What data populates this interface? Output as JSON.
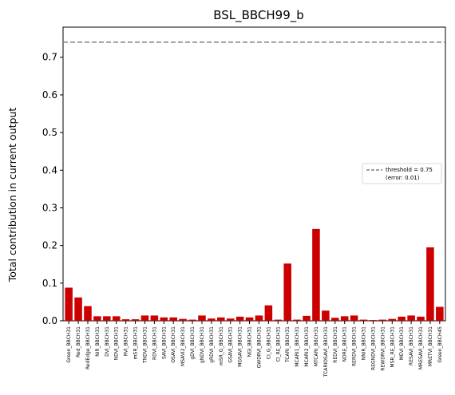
{
  "chart_data": {
    "type": "bar",
    "title": "BSL_BBCH99_b",
    "xlabel": "",
    "ylabel": "Total contribution in current output",
    "ylim": [
      0,
      0.78
    ],
    "yticks": [
      "0.0",
      "0.1",
      "0.2",
      "0.3",
      "0.4",
      "0.5",
      "0.6",
      "0.7"
    ],
    "bar_color": "#cc0000",
    "threshold": {
      "value": 0.74,
      "label_line1": "threshold = 0.75",
      "label_line2": "(error: 0.01)",
      "color": "#808080",
      "style": "dashed"
    },
    "legend_position": "center-right",
    "grid": false,
    "categories": [
      "Green_BBCH31",
      "Red_BBCH31",
      "RedEdge_BBCH31",
      "NIR_BBCH31",
      "DVI_BBCH31",
      "NDVI_BBCH31",
      "RVI_BBCH31",
      "mSR_BBCH31",
      "TNDVI_BBCH31",
      "RDVI_BBCH31",
      "SAVI_BBCH31",
      "OSAVI_BBCH31",
      "MSAVI2_BBCH31",
      "gDVI_BBCH31",
      "gNDVI_BBCH31",
      "gRDVI_BBCH31",
      "mSR_G_BBCH31",
      "GSAVI_BBCH31",
      "MGSAVI_BBCH31",
      "NGI_BBCH31",
      "GWDRVI_BBCH31",
      "CI_G_BBCH31",
      "CI_RE_BBCH31",
      "TCARI_BBCH31",
      "MCARI1_BBCH31",
      "MCARI2_BBCH31",
      "MTCARI_BBCH31",
      "TCARIOSAVI_BBCH31",
      "REDVI_BBCH31",
      "NDRE_BBCH31",
      "RERDVI_BBCH31",
      "NNIR_BBCH31",
      "REGNDVI_BBCH31",
      "REWDRVI_BBCH31",
      "MSR_RE_BBCH31",
      "MEVI_BBCH31",
      "RESAVI_BBCH31",
      "MRESAVI_BBCH31",
      "MRETVI_BBCH31",
      "Green_BBCH45"
    ],
    "values": [
      0.088,
      0.062,
      0.039,
      0.012,
      0.012,
      0.012,
      0.004,
      0.004,
      0.014,
      0.014,
      0.009,
      0.009,
      0.005,
      0.003,
      0.014,
      0.006,
      0.009,
      0.006,
      0.011,
      0.009,
      0.014,
      0.041,
      0.003,
      0.152,
      0.003,
      0.013,
      0.244,
      0.027,
      0.008,
      0.012,
      0.014,
      0.003,
      0.002,
      0.003,
      0.005,
      0.011,
      0.014,
      0.011,
      0.195,
      0.037
    ]
  }
}
